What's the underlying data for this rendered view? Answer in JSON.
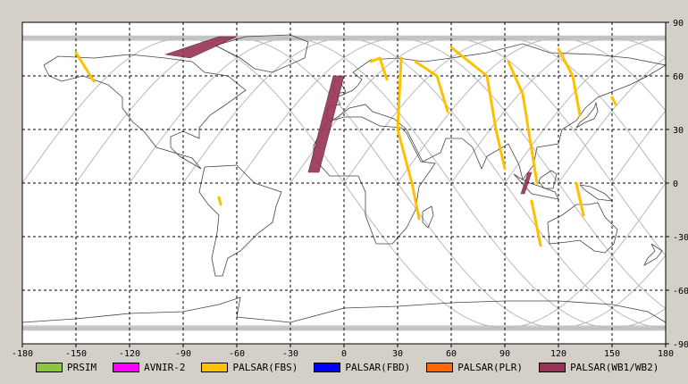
{
  "map": {
    "x_ticks": [
      "-180",
      "-150",
      "-120",
      "-90",
      "-60",
      "-30",
      "0",
      "30",
      "60",
      "90",
      "120",
      "150",
      "180"
    ],
    "y_ticks": [
      "90",
      "60",
      "30",
      "0",
      "-30",
      "-60",
      "-90"
    ],
    "lon_range": [
      -180,
      180
    ],
    "lat_range": [
      -90,
      90
    ],
    "grid": true,
    "background_color": "#ffffff",
    "coastline_color": "#444444",
    "orbit_color": "#b9b9b9"
  },
  "legend": [
    {
      "label": "PRSIM",
      "color": "#8cc63f"
    },
    {
      "label": "AVNIR-2",
      "color": "#ff00ff"
    },
    {
      "label": "PALSAR(FBS)",
      "color": "#ffc000"
    },
    {
      "label": "PALSAR(FBD)",
      "color": "#0000ff"
    },
    {
      "label": "PALSAR(PLR)",
      "color": "#ff6600"
    },
    {
      "label": "PALSAR(WB1/WB2)",
      "color": "#993355"
    }
  ],
  "swaths": [
    {
      "sensor": "PALSAR(WB1/WB2)",
      "points": [
        [
          -100,
          72
        ],
        [
          -70,
          82
        ],
        [
          -60,
          82
        ],
        [
          -86,
          70
        ]
      ]
    },
    {
      "sensor": "PALSAR(WB1/WB2)",
      "points": [
        [
          -6,
          60
        ],
        [
          0,
          60
        ],
        [
          -14,
          6
        ],
        [
          -20,
          6
        ]
      ]
    },
    {
      "sensor": "PALSAR(WB1/WB2)",
      "points": [
        [
          103,
          6
        ],
        [
          105,
          6
        ],
        [
          101,
          -6
        ],
        [
          99,
          -6
        ]
      ]
    },
    {
      "sensor": "PALSAR(FBS)",
      "points": [
        [
          -150,
          73
        ],
        [
          -140,
          57
        ]
      ]
    },
    {
      "sensor": "PALSAR(FBS)",
      "points": [
        [
          15,
          68
        ],
        [
          20,
          70
        ],
        [
          24,
          58
        ]
      ]
    },
    {
      "sensor": "PALSAR(FBS)",
      "points": [
        [
          32,
          70
        ],
        [
          30,
          30
        ],
        [
          38,
          0
        ],
        [
          42,
          -20
        ]
      ]
    },
    {
      "sensor": "PALSAR(FBS)",
      "points": [
        [
          40,
          68
        ],
        [
          52,
          60
        ],
        [
          58,
          40
        ]
      ]
    },
    {
      "sensor": "PALSAR(FBS)",
      "points": [
        [
          60,
          76
        ],
        [
          80,
          60
        ],
        [
          85,
          30
        ],
        [
          90,
          8
        ]
      ]
    },
    {
      "sensor": "PALSAR(FBS)",
      "points": [
        [
          92,
          68
        ],
        [
          100,
          50
        ],
        [
          104,
          25
        ],
        [
          108,
          0
        ]
      ]
    },
    {
      "sensor": "PALSAR(FBS)",
      "points": [
        [
          120,
          75
        ],
        [
          128,
          60
        ],
        [
          132,
          38
        ]
      ]
    },
    {
      "sensor": "PALSAR(FBS)",
      "points": [
        [
          105,
          -10
        ],
        [
          110,
          -35
        ]
      ]
    },
    {
      "sensor": "PALSAR(FBS)",
      "points": [
        [
          130,
          0
        ],
        [
          134,
          -18
        ]
      ]
    },
    {
      "sensor": "PALSAR(FBS)",
      "points": [
        [
          150,
          48
        ],
        [
          152,
          44
        ]
      ]
    },
    {
      "sensor": "PALSAR(FBS)",
      "points": [
        [
          -70,
          -8
        ],
        [
          -69,
          -12
        ]
      ]
    }
  ]
}
